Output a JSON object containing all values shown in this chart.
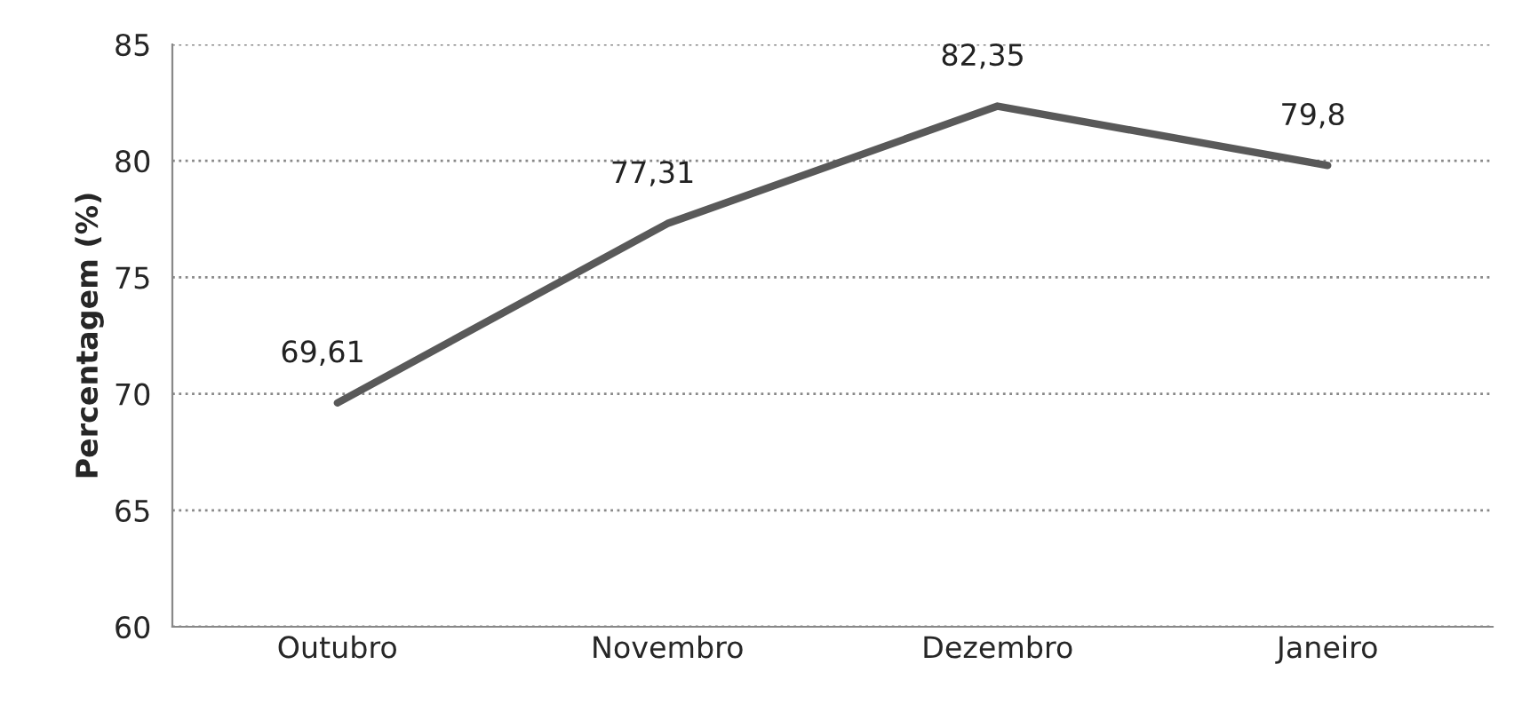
{
  "chart_data": {
    "type": "line",
    "ylabel": "Percentagem (%)",
    "categories": [
      "Outubro",
      "Novembro",
      "Dezembro",
      "Janeiro"
    ],
    "series": [
      {
        "color": "#595959",
        "values": [
          69.61,
          77.31,
          82.35,
          79.8
        ],
        "value_labels": [
          "69,61",
          "77,31",
          "82,35",
          "79,8"
        ]
      }
    ],
    "ylim": [
      60,
      85
    ],
    "yticks": [
      60,
      65,
      70,
      75,
      80,
      85
    ],
    "grid": "y",
    "marker": "none",
    "line_style": "solid"
  }
}
